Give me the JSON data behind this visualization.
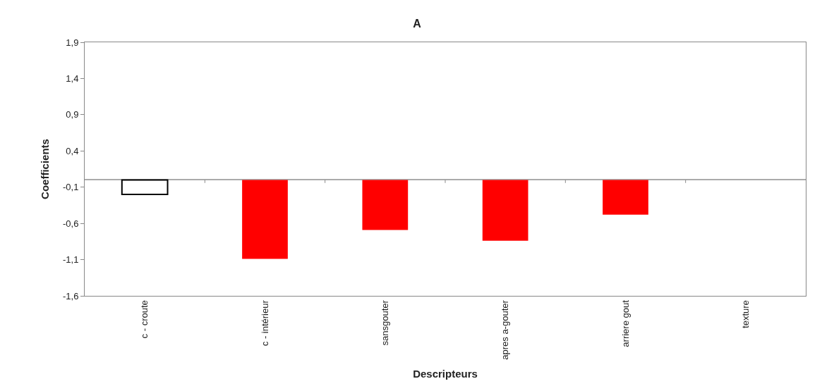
{
  "chart_data": {
    "type": "bar",
    "title": "A",
    "xlabel": "Descripteurs",
    "ylabel": "Coefficients",
    "categories": [
      "c - croute",
      "c - intérieur",
      "sansgouter",
      "apres a-gouter",
      "arriere gout",
      "texture"
    ],
    "values": [
      -0.2,
      -1.09,
      -0.69,
      -0.84,
      -0.48,
      0
    ],
    "colors": [
      "#ffffff",
      "#ff0000",
      "#ff0000",
      "#ff0000",
      "#ff0000",
      "#ff0000"
    ],
    "ylim": [
      -1.6,
      1.9
    ],
    "yticks": [
      {
        "value": -1.6,
        "label": "-1,6"
      },
      {
        "value": -1.1,
        "label": "-1,1"
      },
      {
        "value": -0.6,
        "label": "-0,6"
      },
      {
        "value": -0.1,
        "label": "-0,1"
      },
      {
        "value": 0.4,
        "label": "0,4"
      },
      {
        "value": 0.9,
        "label": "0,9"
      },
      {
        "value": 1.4,
        "label": "1,4"
      },
      {
        "value": 1.9,
        "label": "1,9"
      }
    ],
    "legend": false
  }
}
